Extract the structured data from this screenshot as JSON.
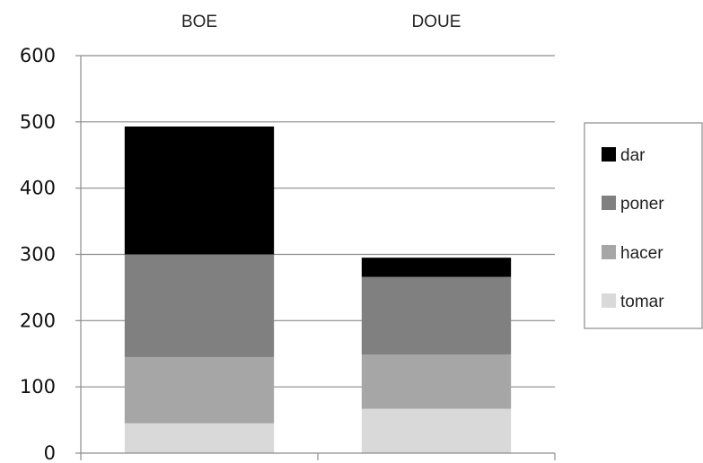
{
  "chart_data": {
    "type": "bar",
    "stacked": true,
    "categories": [
      "BOE",
      "DOUE"
    ],
    "series": [
      {
        "name": "tomar",
        "values": [
          45,
          67
        ],
        "color": "#d9d9d9"
      },
      {
        "name": "hacer",
        "values": [
          100,
          82
        ],
        "color": "#a6a6a6"
      },
      {
        "name": "poner",
        "values": [
          155,
          117
        ],
        "color": "#808080"
      },
      {
        "name": "dar",
        "values": [
          193,
          29
        ],
        "color": "#000000"
      }
    ],
    "ylim": [
      0,
      600
    ],
    "yticks": [
      "0",
      "100",
      "200",
      "300",
      "400",
      "500",
      "600"
    ],
    "grid": true,
    "category_labels_position": "top",
    "legend": {
      "placement": "right",
      "entries": [
        "dar",
        "poner",
        "hacer",
        "tomar"
      ]
    }
  }
}
